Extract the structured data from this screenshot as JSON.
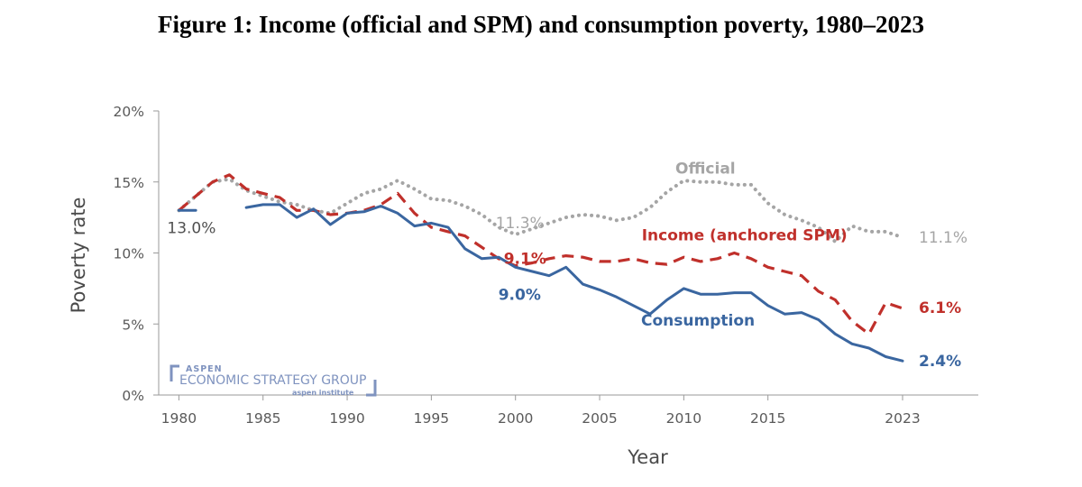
{
  "figure_title": "Figure 1: Income (official and SPM) and consumption poverty, 1980–2023",
  "colors": {
    "official": "#a5a5a5",
    "income": "#c0302b",
    "consumption": "#3a66a0",
    "axis": "#9a9a9a",
    "brand": "#7f93bf"
  },
  "watermark": {
    "line1": "ASPEN",
    "line2": "ECONOMIC STRATEGY GROUP",
    "line3": "aspen institute"
  },
  "chart_data": {
    "type": "line",
    "title": "Figure 1: Income (official and SPM) and consumption poverty, 1980–2023",
    "xlabel": "Year",
    "ylabel": "Poverty rate",
    "xlim": [
      1978.8,
      2027.5
    ],
    "ylim": [
      0,
      20
    ],
    "x_ticks": [
      1980,
      1985,
      1990,
      1995,
      2000,
      2005,
      2010,
      2015,
      2023
    ],
    "x_tick_labels": [
      "1980",
      "1985",
      "1990",
      "1995",
      "2000",
      "2005",
      "2010",
      "2015",
      "2023"
    ],
    "y_ticks": [
      0,
      5,
      10,
      15,
      20
    ],
    "y_tick_labels": [
      "0%",
      "5%",
      "10%",
      "15%",
      "20%"
    ],
    "grid": false,
    "series": [
      {
        "name": "Official",
        "style": "dotted",
        "x": [
          1980,
          1981,
          1982,
          1983,
          1984,
          1985,
          1986,
          1987,
          1988,
          1989,
          1990,
          1991,
          1992,
          1993,
          1994,
          1995,
          1996,
          1997,
          1998,
          1999,
          2000,
          2001,
          2002,
          2003,
          2004,
          2005,
          2006,
          2007,
          2008,
          2009,
          2010,
          2011,
          2012,
          2013,
          2014,
          2015,
          2016,
          2017,
          2018,
          2019,
          2020,
          2021,
          2022,
          2023
        ],
        "values": [
          13.0,
          14.0,
          15.0,
          15.2,
          14.4,
          14.0,
          13.6,
          13.4,
          13.0,
          12.8,
          13.5,
          14.2,
          14.5,
          15.1,
          14.5,
          13.8,
          13.7,
          13.3,
          12.7,
          11.8,
          11.3,
          11.7,
          12.1,
          12.5,
          12.7,
          12.6,
          12.3,
          12.5,
          13.2,
          14.3,
          15.1,
          15.0,
          15.0,
          14.8,
          14.8,
          13.5,
          12.7,
          12.3,
          11.8,
          10.8,
          11.9,
          11.5,
          11.5,
          11.1
        ]
      },
      {
        "name": "Income (anchored SPM)",
        "style": "dashed",
        "x": [
          1980,
          1981,
          1982,
          1983,
          1984,
          1985,
          1986,
          1987,
          1988,
          1989,
          1990,
          1991,
          1992,
          1993,
          1994,
          1995,
          1996,
          1997,
          1998,
          1999,
          2000,
          2001,
          2002,
          2003,
          2004,
          2005,
          2006,
          2007,
          2008,
          2009,
          2010,
          2011,
          2012,
          2013,
          2014,
          2015,
          2016,
          2017,
          2018,
          2019,
          2020,
          2021,
          2022,
          2023
        ],
        "values": [
          13.0,
          14.0,
          15.0,
          15.5,
          14.5,
          14.2,
          13.9,
          13.0,
          13.0,
          12.7,
          12.8,
          13.0,
          13.4,
          14.2,
          12.8,
          11.8,
          11.5,
          11.2,
          10.4,
          9.6,
          9.1,
          9.3,
          9.6,
          9.8,
          9.7,
          9.4,
          9.4,
          9.6,
          9.3,
          9.2,
          9.7,
          9.4,
          9.6,
          10.0,
          9.6,
          9.0,
          8.7,
          8.4,
          7.3,
          6.7,
          5.2,
          4.3,
          6.5,
          6.1
        ]
      },
      {
        "name": "Consumption",
        "style": "solid",
        "segments": [
          {
            "x": [
              1980,
              1981
            ],
            "values": [
              13.0,
              13.0
            ]
          },
          {
            "x": [
              1984,
              1985,
              1986,
              1987,
              1988,
              1989,
              1990,
              1991,
              1992,
              1993,
              1994,
              1995,
              1996,
              1997,
              1998,
              1999,
              2000,
              2001,
              2002,
              2003,
              2004,
              2005,
              2006,
              2007,
              2008,
              2009,
              2010,
              2011,
              2012,
              2013,
              2014,
              2015,
              2016,
              2017,
              2018,
              2019,
              2020,
              2021,
              2022,
              2023
            ],
            "values": [
              13.2,
              13.4,
              13.4,
              12.5,
              13.1,
              12.0,
              12.8,
              12.9,
              13.3,
              12.8,
              11.9,
              12.1,
              11.8,
              10.3,
              9.6,
              9.7,
              9.0,
              8.7,
              8.4,
              9.0,
              7.8,
              7.4,
              6.9,
              6.3,
              5.7,
              6.7,
              7.5,
              7.1,
              7.1,
              7.2,
              7.2,
              6.3,
              5.7,
              5.8,
              5.3,
              4.3,
              3.6,
              3.3,
              2.7,
              2.4
            ]
          }
        ]
      }
    ],
    "annotations": [
      {
        "text": "13.0%",
        "series": "Consumption",
        "x": 1980,
        "y": 13.0,
        "position": "below"
      },
      {
        "text": "Official",
        "series": "Official",
        "x": 2009.5,
        "y": 15.6,
        "position": "above-line"
      },
      {
        "text": "11.3%",
        "series": "Official",
        "x": 2000,
        "y": 11.3,
        "position": "above"
      },
      {
        "text": "Income (anchored SPM)",
        "series": "Income (anchored SPM)",
        "x": 2007.5,
        "y": 10.9,
        "position": "above-line"
      },
      {
        "text": "9.1%",
        "series": "Income (anchored SPM)",
        "x": 2000,
        "y": 9.1,
        "position": "above"
      },
      {
        "text": "9.0%",
        "series": "Consumption",
        "x": 2000,
        "y": 9.0,
        "position": "below"
      },
      {
        "text": "Consumption",
        "series": "Consumption",
        "x": 2008,
        "y": 4.9,
        "position": "below-line"
      },
      {
        "text": "11.1%",
        "series": "Official",
        "x": 2023,
        "y": 11.1,
        "position": "end"
      },
      {
        "text": "6.1%",
        "series": "Income (anchored SPM)",
        "x": 2023,
        "y": 6.1,
        "position": "end"
      },
      {
        "text": "2.4%",
        "series": "Consumption",
        "x": 2023,
        "y": 2.4,
        "position": "end"
      }
    ]
  }
}
